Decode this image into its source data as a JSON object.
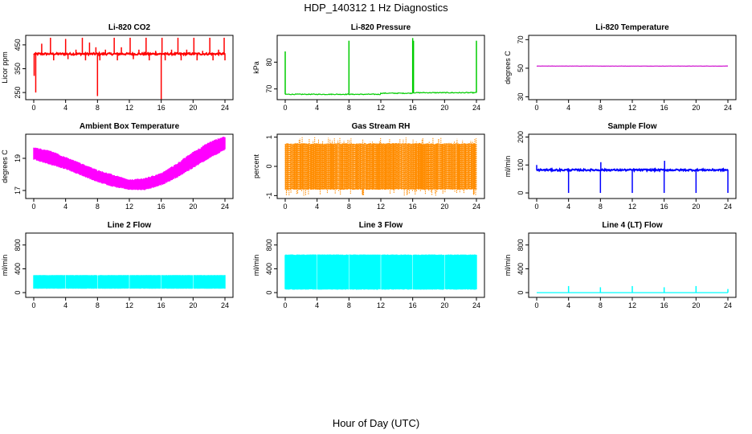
{
  "figure": {
    "title": "HDP_140312  1 Hz Diagnostics",
    "xlabel": "Hour of Day (UTC)"
  },
  "chart_data": [
    {
      "type": "line",
      "title": "Li-820 CO2",
      "ylabel": "Licor ppm",
      "xlim": [
        0,
        24
      ],
      "ylim": [
        220,
        490
      ],
      "xticks": [
        0,
        4,
        8,
        12,
        16,
        20,
        24
      ],
      "yticks": [
        250,
        350,
        450
      ],
      "color": "#ff0000",
      "grid": false,
      "series": [
        {
          "baseline": 412,
          "noise": 4,
          "trend": 0,
          "spikes": [
            {
              "x": 0.05,
              "y": 320
            },
            {
              "x": 0.25,
              "y": 250
            },
            {
              "x": 1.0,
              "y": 455
            },
            {
              "x": 2.1,
              "y": 480
            },
            {
              "x": 2.5,
              "y": 385
            },
            {
              "x": 4.0,
              "y": 475
            },
            {
              "x": 4.3,
              "y": 390
            },
            {
              "x": 5.3,
              "y": 430
            },
            {
              "x": 6.1,
              "y": 480
            },
            {
              "x": 6.5,
              "y": 385
            },
            {
              "x": 7.0,
              "y": 460
            },
            {
              "x": 7.8,
              "y": 440
            },
            {
              "x": 8.0,
              "y": 235
            },
            {
              "x": 8.3,
              "y": 385
            },
            {
              "x": 9.0,
              "y": 430
            },
            {
              "x": 10.1,
              "y": 480
            },
            {
              "x": 10.5,
              "y": 385
            },
            {
              "x": 11.0,
              "y": 440
            },
            {
              "x": 12.1,
              "y": 480
            },
            {
              "x": 12.5,
              "y": 390
            },
            {
              "x": 13.2,
              "y": 430
            },
            {
              "x": 14.1,
              "y": 480
            },
            {
              "x": 14.5,
              "y": 385
            },
            {
              "x": 15.3,
              "y": 425
            },
            {
              "x": 16.0,
              "y": 222
            },
            {
              "x": 16.1,
              "y": 480
            },
            {
              "x": 16.5,
              "y": 385
            },
            {
              "x": 17.3,
              "y": 430
            },
            {
              "x": 18.1,
              "y": 480
            },
            {
              "x": 18.5,
              "y": 385
            },
            {
              "x": 19.2,
              "y": 430
            },
            {
              "x": 20.1,
              "y": 480
            },
            {
              "x": 20.5,
              "y": 385
            },
            {
              "x": 21.2,
              "y": 425
            },
            {
              "x": 22.1,
              "y": 480
            },
            {
              "x": 22.5,
              "y": 385
            },
            {
              "x": 23.2,
              "y": 430
            },
            {
              "x": 23.9,
              "y": 480
            },
            {
              "x": 24.0,
              "y": 385
            }
          ]
        }
      ]
    },
    {
      "type": "line",
      "title": "Li-820 Pressure",
      "ylabel": "kPa",
      "xlim": [
        0,
        24
      ],
      "ylim": [
        66,
        90
      ],
      "xticks": [
        0,
        4,
        8,
        12,
        16,
        20,
        24
      ],
      "yticks": [
        70,
        80
      ],
      "color": "#00cc00",
      "grid": false,
      "series": [
        {
          "baseline": 68.2,
          "noise": 0.15,
          "steps": [
            {
              "x": 0,
              "y": 68.0
            },
            {
              "x": 12,
              "y": 68.4
            },
            {
              "x": 16,
              "y": 68.6
            }
          ],
          "spikes": [
            {
              "x": 0.0,
              "y": 84
            },
            {
              "x": 8.0,
              "y": 88
            },
            {
              "x": 16.0,
              "y": 89
            },
            {
              "x": 16.1,
              "y": 88
            },
            {
              "x": 24.0,
              "y": 88
            }
          ]
        }
      ]
    },
    {
      "type": "line",
      "title": "Li-820 Temperature",
      "ylabel": "degrees C",
      "xlim": [
        0,
        24
      ],
      "ylim": [
        28,
        73
      ],
      "xticks": [
        0,
        4,
        8,
        12,
        16,
        20,
        24
      ],
      "yticks": [
        30,
        50,
        70
      ],
      "color": "#cc00cc",
      "grid": false,
      "series": [
        {
          "baseline": 51.5,
          "noise": 0.05,
          "spikes": []
        }
      ]
    },
    {
      "type": "area",
      "title": "Ambient Box Temperature",
      "ylabel": "degrees C",
      "xlim": [
        0,
        24
      ],
      "ylim": [
        16.5,
        20.5
      ],
      "xticks": [
        0,
        4,
        8,
        12,
        16,
        20,
        24
      ],
      "yticks": [
        17,
        19
      ],
      "color": "#ff00ff",
      "grid": false,
      "series": [
        {
          "name": "",
          "x": [
            0,
            2,
            4,
            6,
            8,
            10,
            12,
            14,
            16,
            18,
            20,
            22,
            24
          ],
          "low": [
            19.0,
            18.7,
            18.4,
            18.0,
            17.6,
            17.3,
            17.1,
            17.1,
            17.4,
            17.9,
            18.5,
            19.1,
            19.6
          ],
          "high": [
            19.6,
            19.4,
            19.0,
            18.6,
            18.2,
            17.9,
            17.6,
            17.7,
            18.0,
            18.6,
            19.3,
            19.9,
            20.3
          ]
        }
      ]
    },
    {
      "type": "scatter",
      "title": "Gas Stream RH",
      "ylabel": "percent",
      "xlim": [
        0,
        24
      ],
      "ylim": [
        -1.1,
        1.1
      ],
      "xticks": [
        0,
        4,
        8,
        12,
        16,
        20,
        24
      ],
      "yticks": [
        -1.0,
        0.0,
        1.0
      ],
      "color": "#ff8c00",
      "grid": false,
      "series": [
        {
          "name": "",
          "low": -0.75,
          "high": 0.75,
          "extreme_low": -1.0,
          "extreme_high": 1.0
        }
      ]
    },
    {
      "type": "line",
      "title": "Sample Flow",
      "ylabel": "ml/min",
      "xlim": [
        0,
        24
      ],
      "ylim": [
        -20,
        210
      ],
      "xticks": [
        0,
        4,
        8,
        12,
        16,
        20,
        24
      ],
      "yticks": [
        0,
        100,
        200
      ],
      "color": "#0000ff",
      "grid": false,
      "series": [
        {
          "baseline": 82,
          "noise": 3,
          "spikes": [
            {
              "x": 0.0,
              "y": 100
            },
            {
              "x": 4.0,
              "y": 0
            },
            {
              "x": 8.0,
              "y": 0
            },
            {
              "x": 8.05,
              "y": 110
            },
            {
              "x": 12.0,
              "y": 0
            },
            {
              "x": 16.0,
              "y": 0
            },
            {
              "x": 16.05,
              "y": 115
            },
            {
              "x": 20.0,
              "y": 0
            },
            {
              "x": 24.0,
              "y": 0
            }
          ]
        }
      ]
    },
    {
      "type": "area",
      "title": "Line 2 Flow",
      "ylabel": "ml/min",
      "xlim": [
        0,
        24
      ],
      "ylim": [
        -80,
        1000
      ],
      "xticks": [
        0,
        4,
        8,
        12,
        16,
        20,
        24
      ],
      "yticks": [
        0,
        400,
        800
      ],
      "color": "#00ffff",
      "grid": false,
      "series": [
        {
          "name": "",
          "x": [
            0,
            24
          ],
          "low": [
            70,
            70
          ],
          "high": [
            290,
            290
          ],
          "gaps": [
            4,
            8,
            12,
            16,
            20
          ]
        }
      ]
    },
    {
      "type": "area",
      "title": "Line 3 Flow",
      "ylabel": "ml/min",
      "xlim": [
        0,
        24
      ],
      "ylim": [
        -80,
        1000
      ],
      "xticks": [
        0,
        4,
        8,
        12,
        16,
        20,
        24
      ],
      "yticks": [
        0,
        400,
        800
      ],
      "color": "#00ffff",
      "grid": false,
      "series": [
        {
          "name": "",
          "x": [
            0,
            24
          ],
          "low": [
            60,
            60
          ],
          "high": [
            630,
            630
          ],
          "gaps": [
            4,
            8,
            12,
            16,
            20
          ]
        }
      ]
    },
    {
      "type": "line",
      "title": "Line 4 (LT) Flow",
      "ylabel": "ml/min",
      "xlim": [
        0,
        24
      ],
      "ylim": [
        -80,
        1000
      ],
      "xticks": [
        0,
        4,
        8,
        12,
        16,
        20,
        24
      ],
      "yticks": [
        0,
        400,
        800
      ],
      "color": "#00ffff",
      "grid": false,
      "series": [
        {
          "baseline": 0,
          "noise": 0,
          "spikes": [
            {
              "x": 4.0,
              "y": 110
            },
            {
              "x": 8.0,
              "y": 90
            },
            {
              "x": 12.0,
              "y": 110
            },
            {
              "x": 16.0,
              "y": 90
            },
            {
              "x": 20.0,
              "y": 110
            },
            {
              "x": 24.0,
              "y": 60
            }
          ]
        }
      ]
    }
  ]
}
